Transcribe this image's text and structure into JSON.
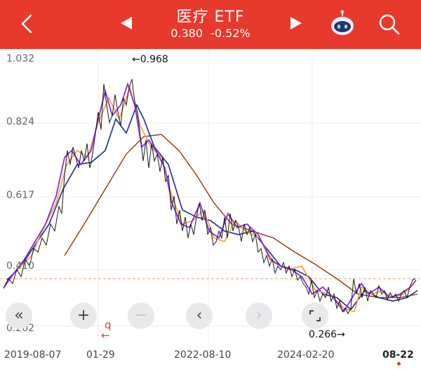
{
  "header": {
    "title": "医疗 ETF",
    "price": "0.380",
    "change": "-0.52%",
    "back_icon": "chevron-left-icon",
    "robot_icon": "robot-assistant-icon",
    "search_icon": "search-icon",
    "prev_icon": "triangle-left-icon",
    "next_icon": "triangle-right-icon"
  },
  "chart_data": {
    "type": "line",
    "y_ticks": [
      "1.032",
      "0.824",
      "0.617",
      "0.410",
      "0.202"
    ],
    "x_ticks": [
      "2019-08-07",
      "01-29",
      "2022-08-10",
      "2024-02-20",
      "08-22"
    ],
    "ylim": [
      0.202,
      1.032
    ],
    "high_label": "←0.968",
    "low_label": "0.266→",
    "last_price_line": 0.38,
    "colors": {
      "price": "#1a1a1a",
      "ma_short": "#8a2be2",
      "ma_mid": "#f0a030",
      "ma_long": "#1a2a9a",
      "ma_very_long": "#8b3a0e",
      "ref_line": "#e8a080"
    },
    "series": [
      {
        "name": "",
        "x": [
          0,
          0.05,
          0.1,
          0.15,
          0.2,
          0.25,
          0.3,
          0.33,
          0.36,
          0.4,
          0.44,
          0.5,
          0.55,
          0.6,
          0.65,
          0.7,
          0.74,
          0.78,
          0.83,
          0.87,
          0.9,
          0.95,
          1.0
        ],
        "values": [
          0.34,
          0.43,
          0.52,
          0.72,
          0.72,
          0.86,
          0.96,
          0.88,
          0.74,
          0.66,
          0.55,
          0.53,
          0.57,
          0.5,
          0.51,
          0.43,
          0.41,
          0.32,
          0.3,
          0.34,
          0.32,
          0.33,
          0.37
        ]
      }
    ]
  },
  "controls": {
    "collapse_icon": "double-chevron-left-icon",
    "zoom_in_icon": "plus-icon",
    "zoom_out_icon": "minus-icon",
    "pan_left_icon": "chevron-left-icon",
    "pan_right_icon": "chevron-right-icon",
    "fullscreen_icon": "fullscreen-icon"
  },
  "q_marker": "q",
  "q_arrow": "←"
}
